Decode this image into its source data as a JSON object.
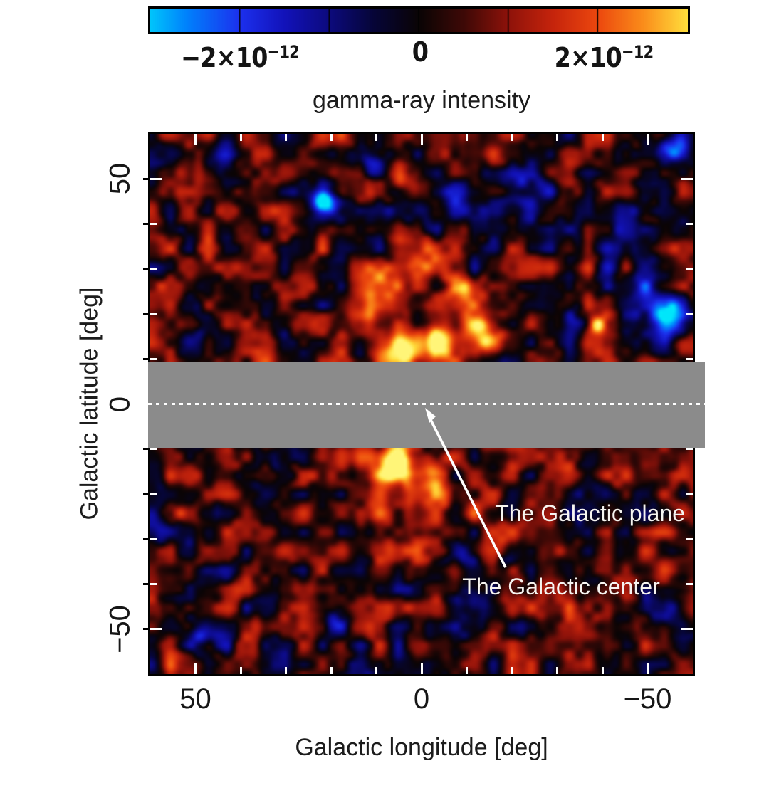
{
  "figure": {
    "background": "#ffffff"
  },
  "title": "gamma-ray intensity",
  "colorbar": {
    "label_neg_base": "−2×10",
    "label_neg_exp": "−12",
    "label_zero": "0",
    "label_pos_base": "2×10",
    "label_pos_exp": "−12"
  },
  "annotations": {
    "plane_label": "The Galactic plane",
    "center_label": "The Galactic center"
  },
  "chart_data": {
    "type": "heatmap",
    "title": "gamma-ray intensity",
    "xlabel": "Galactic longitude [deg]",
    "ylabel": "Galactic latitude [deg]",
    "x_range_deg": [
      60,
      -60
    ],
    "y_range_deg": [
      60,
      -60
    ],
    "tick_step_deg": 10,
    "x_ticks": [
      {
        "value": 50,
        "label": "50"
      },
      {
        "value": 0,
        "label": "0"
      },
      {
        "value": -50,
        "label": "−50"
      }
    ],
    "y_ticks": [
      {
        "value": 50,
        "label": "50"
      },
      {
        "value": 0,
        "label": "0"
      },
      {
        "value": -50,
        "label": "−50"
      }
    ],
    "colorbar": {
      "min": -3e-12,
      "max": 3e-12,
      "divider_step": 1e-12,
      "labeled_values": [
        -2e-12,
        0,
        2e-12
      ],
      "units": "gamma-ray intensity"
    },
    "colormap_stops": [
      {
        "v": -3.2,
        "rgb": [
          0,
          230,
          250
        ]
      },
      {
        "v": -2.6,
        "rgb": [
          0,
          130,
          252
        ]
      },
      {
        "v": -2.0,
        "rgb": [
          28,
          48,
          238
        ]
      },
      {
        "v": -1.5,
        "rgb": [
          18,
          18,
          185
        ]
      },
      {
        "v": -1.0,
        "rgb": [
          12,
          10,
          125
        ]
      },
      {
        "v": -0.5,
        "rgb": [
          6,
          5,
          55
        ]
      },
      {
        "v": 0.0,
        "rgb": [
          10,
          4,
          5
        ]
      },
      {
        "v": 0.5,
        "rgb": [
          62,
          9,
          6
        ]
      },
      {
        "v": 1.0,
        "rgb": [
          142,
          18,
          10
        ]
      },
      {
        "v": 1.5,
        "rgb": [
          198,
          36,
          12
        ]
      },
      {
        "v": 2.0,
        "rgb": [
          236,
          72,
          14
        ]
      },
      {
        "v": 2.5,
        "rgb": [
          250,
          140,
          26
        ]
      },
      {
        "v": 3.0,
        "rgb": [
          255,
          222,
          60
        ]
      },
      {
        "v": 3.3,
        "rgb": [
          255,
          245,
          120
        ]
      }
    ],
    "masked_band": {
      "lat_min_deg": -9.7,
      "lat_max_deg": 9.3,
      "color": "#8b8b8b"
    },
    "plane_line_lat_deg": 0,
    "galactic_center": {
      "lon_deg": 0,
      "lat_deg": 0
    },
    "background_field": {
      "seed": 7,
      "base": 0.5,
      "noise_amp": 1.8,
      "octaves": [
        {
          "cell_deg": 4.2,
          "amp": 1.0
        },
        {
          "cell_deg": 2.1,
          "amp": 0.45
        }
      ]
    },
    "features_units": "amp in 1e-12, lon/lat/sigma in deg",
    "features": [
      {
        "lon": 21.6,
        "lat": 44.9,
        "amp": -3.4,
        "sigma": 1.9
      },
      {
        "lon": 21.6,
        "lat": 44.9,
        "amp": -1.2,
        "sigma": 4.2
      },
      {
        "lon": 11.6,
        "lat": 53.9,
        "amp": -2.2,
        "sigma": 2.6
      },
      {
        "lon": -19.3,
        "lat": 42.0,
        "amp": -1.5,
        "sigma": 4.5
      },
      {
        "lon": -24.8,
        "lat": 48.6,
        "amp": -1.6,
        "sigma": 3.2
      },
      {
        "lon": -7.5,
        "lat": 46.0,
        "amp": -1.2,
        "sigma": 5.5
      },
      {
        "lon": 4.2,
        "lat": 11.8,
        "amp": 3.4,
        "sigma": 3.4
      },
      {
        "lon": -3.1,
        "lat": 14.0,
        "amp": 3.0,
        "sigma": 3.0
      },
      {
        "lon": 8.8,
        "lat": 27.5,
        "amp": 2.0,
        "sigma": 3.0
      },
      {
        "lon": 0.6,
        "lat": 34.1,
        "amp": 1.7,
        "sigma": 3.2
      },
      {
        "lon": -8.8,
        "lat": 23.1,
        "amp": 2.0,
        "sigma": 3.2
      },
      {
        "lon": -13.8,
        "lat": 15.6,
        "amp": 2.4,
        "sigma": 2.8
      },
      {
        "lon": 12.0,
        "lat": 20.0,
        "amp": 1.6,
        "sigma": 3.5
      },
      {
        "lon": 2.7,
        "lat": 49.5,
        "amp": 1.3,
        "sigma": 2.2
      },
      {
        "lon": -38.9,
        "lat": 17.6,
        "amp": 3.2,
        "sigma": 1.3
      },
      {
        "lon": -34.2,
        "lat": 18.7,
        "amp": -1.5,
        "sigma": 2.2
      },
      {
        "lon": -54.6,
        "lat": 18.4,
        "amp": -3.2,
        "sigma": 2.8
      },
      {
        "lon": -51.0,
        "lat": 24.0,
        "amp": -1.5,
        "sigma": 6.0
      },
      {
        "lon": -55.4,
        "lat": 57.7,
        "amp": -2.4,
        "sigma": 2.5
      },
      {
        "lon": -42.0,
        "lat": 39.6,
        "amp": -1.1,
        "sigma": 7.0
      },
      {
        "lon": 45.8,
        "lat": 54.2,
        "amp": -1.4,
        "sigma": 3.0
      },
      {
        "lon": 51.8,
        "lat": 17.6,
        "amp": -1.2,
        "sigma": 3.5
      },
      {
        "lon": 5.6,
        "lat": -13.9,
        "amp": 3.6,
        "sigma": 2.6
      },
      {
        "lon": -2.5,
        "lat": -14.8,
        "amp": 2.2,
        "sigma": 2.5
      },
      {
        "lon": 4.2,
        "lat": -23.9,
        "amp": 1.1,
        "sigma": 8.0
      },
      {
        "lon": -11.5,
        "lat": -44.0,
        "amp": -1.9,
        "sigma": 2.6
      },
      {
        "lon": -54.6,
        "lat": -45.4,
        "amp": -2.6,
        "sigma": 2.8
      },
      {
        "lon": 48.3,
        "lat": -52.0,
        "amp": -2.3,
        "sigma": 3.0
      },
      {
        "lon": -37.0,
        "lat": -19.5,
        "amp": -1.4,
        "sigma": 3.0
      },
      {
        "lon": -9.6,
        "lat": -33.3,
        "amp": -1.7,
        "sigma": 2.5
      },
      {
        "lon": 19.1,
        "lat": -48.2,
        "amp": -1.6,
        "sigma": 2.5
      },
      {
        "lon": 58.7,
        "lat": -27.0,
        "amp": -1.3,
        "sigma": 3.0
      },
      {
        "lon": 47.4,
        "lat": -39.6,
        "amp": -1.3,
        "sigma": 3.5
      },
      {
        "lon": -18.5,
        "lat": -36.0,
        "amp": -1.2,
        "sigma": 2.2
      },
      {
        "lon": 10.0,
        "lat": -57.0,
        "amp": -0.5,
        "sigma": 10.0
      }
    ]
  }
}
